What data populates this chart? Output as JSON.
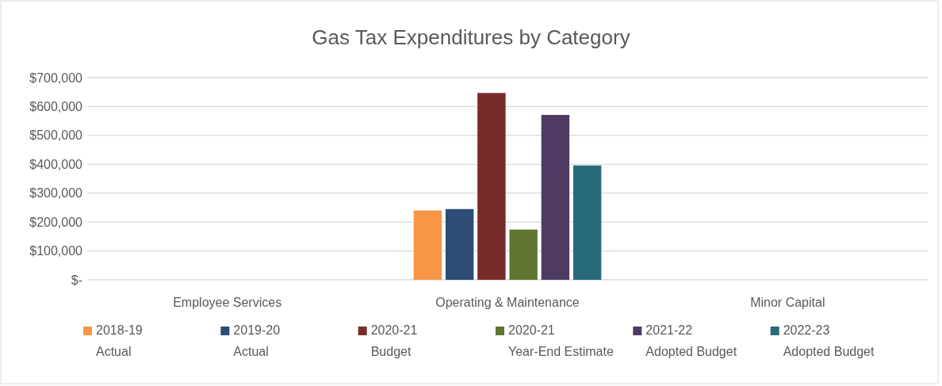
{
  "chart_data": {
    "type": "bar",
    "title": "Gas Tax Expenditures by Category",
    "categories": [
      "Employee Services",
      "Operating & Maintenance",
      "Minor Capital"
    ],
    "series": [
      {
        "name": "2018-19 Actual",
        "color": "#f79646",
        "values": [
          0,
          240000,
          0
        ]
      },
      {
        "name": "2019-20 Actual",
        "color": "#2c4d75",
        "values": [
          0,
          245000,
          0
        ]
      },
      {
        "name": "2020-21 Budget",
        "color": "#772c2a",
        "values": [
          0,
          647000,
          0
        ]
      },
      {
        "name": "2020-21 Year-End Estimate",
        "color": "#5f7530",
        "values": [
          0,
          174000,
          0
        ]
      },
      {
        "name": "2021-22 Adopted Budget",
        "color": "#4d3b62",
        "values": [
          0,
          571000,
          0
        ]
      },
      {
        "name": "2022-23 Adopted Budget",
        "color": "#276a7c",
        "values": [
          0,
          396000,
          0
        ]
      }
    ],
    "ylim": [
      0,
      700000
    ],
    "yticks": [
      {
        "value": 0,
        "label": "$-"
      },
      {
        "value": 100000,
        "label": "$100,000"
      },
      {
        "value": 200000,
        "label": "$200,000"
      },
      {
        "value": 300000,
        "label": "$300,000"
      },
      {
        "value": 400000,
        "label": "$400,000"
      },
      {
        "value": 500000,
        "label": "$500,000"
      },
      {
        "value": 600000,
        "label": "$600,000"
      },
      {
        "value": 700000,
        "label": "$700,000"
      }
    ],
    "grid": "y",
    "legend": "bottom"
  }
}
